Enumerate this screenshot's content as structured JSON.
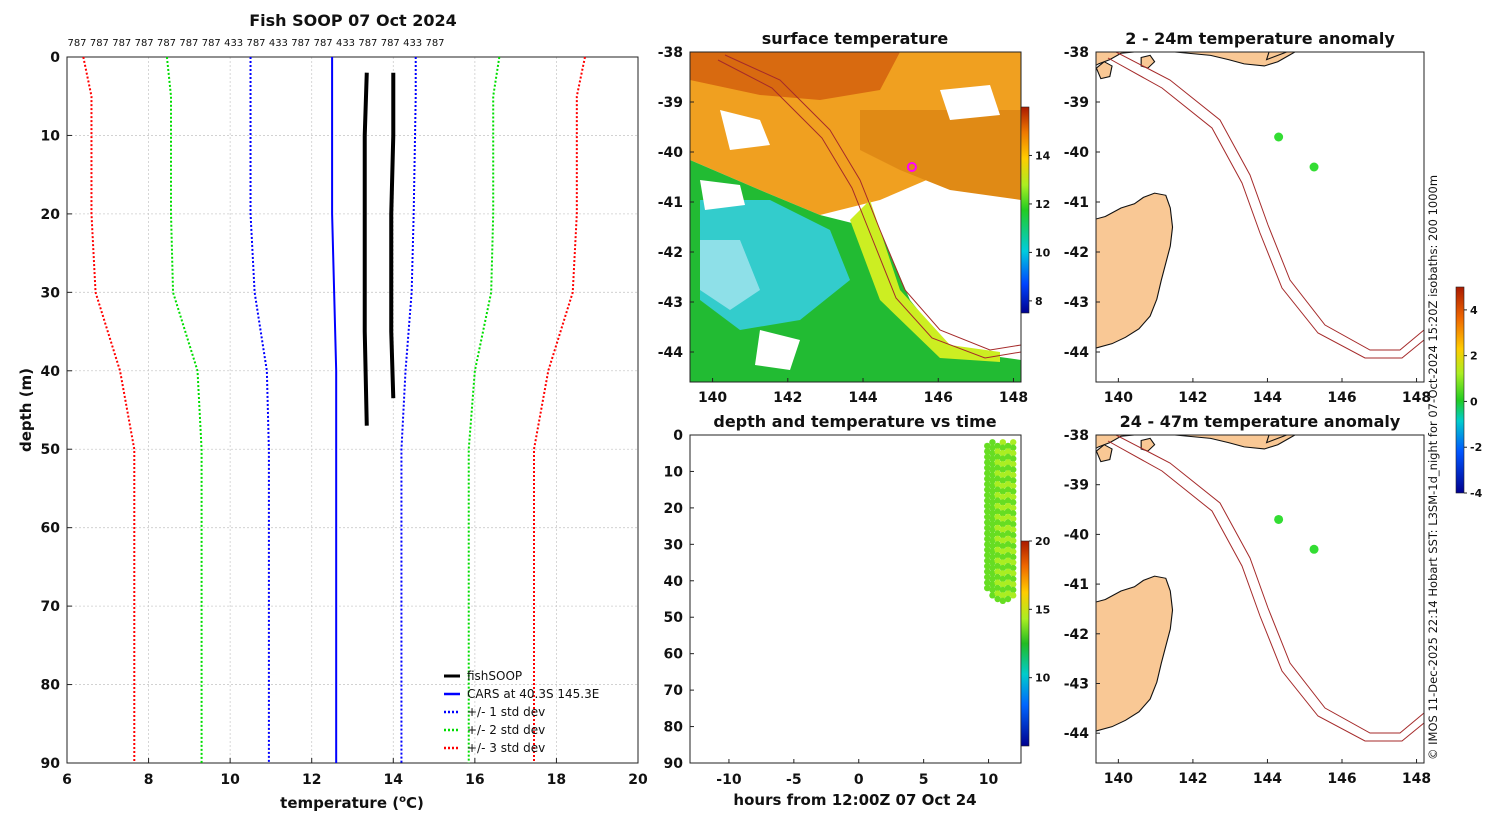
{
  "colors": {
    "fishsoop": "#000000",
    "cars": "#0000ff",
    "std1": "#0000ff",
    "std2": "#00dd00",
    "std3": "#ff0000",
    "land": "#f9c895",
    "isobath": "#a52a2a",
    "marker": "#ff00ff",
    "anomaly_point": "#33dd33"
  },
  "side_caption": "© IMOS 11-Dec-2025 22:14 Hobart SST: L3SM-1d_night for 07-Oct-2024 15:20Z isobaths: 200  1000m",
  "chart_data": [
    {
      "type": "line",
      "title": "Fish SOOP 07 Oct 2024",
      "xlabel": "temperature (°C)",
      "xlabel_main": "temperature (",
      "xlabel_sup": "o",
      "xlabel_tail": "C)",
      "ylabel": "depth (m)",
      "xlim": [
        6,
        20
      ],
      "ylim": [
        90,
        0
      ],
      "xticks": [
        "6",
        "8",
        "10",
        "12",
        "14",
        "16",
        "18",
        "20"
      ],
      "yticks": [
        "0",
        "10",
        "20",
        "30",
        "40",
        "50",
        "60",
        "70",
        "80",
        "90"
      ],
      "grid": true,
      "legend_position": "bottom-right",
      "sample_counts": [
        "787",
        "787",
        "787",
        "787",
        "787",
        "787",
        "787",
        "433",
        "787",
        "433",
        "787",
        "787",
        "433",
        "787",
        "787",
        "433",
        "787"
      ],
      "series": [
        {
          "name": "fishSOOP",
          "style": "solid",
          "width": 4,
          "color_key": "fishsoop",
          "x": [
            13.35,
            13.3,
            13.3,
            13.3,
            13.35
          ],
          "y": [
            2,
            10,
            20,
            35,
            47
          ]
        },
        {
          "name": "fishSOOP",
          "style": "solid",
          "width": 4,
          "color_key": "fishsoop",
          "x": [
            14.0,
            14.0,
            13.95,
            13.95,
            14.0
          ],
          "y": [
            2,
            10,
            20,
            35,
            43.5
          ]
        },
        {
          "name": "CARS at 40.3S 145.3E",
          "style": "solid",
          "width": 2,
          "color_key": "cars",
          "x": [
            12.5,
            12.5,
            12.5,
            12.55,
            12.6,
            12.6,
            12.6,
            12.6
          ],
          "y": [
            0,
            5,
            20,
            30,
            40,
            50,
            60,
            90
          ]
        },
        {
          "name": "+/- 1 std dev",
          "style": "dotted",
          "width": 2,
          "color_key": "std1",
          "x": [
            10.5,
            10.5,
            10.5,
            10.6,
            10.9,
            10.95,
            10.95,
            10.95
          ],
          "y": [
            0,
            5,
            20,
            30,
            40,
            50,
            60,
            90
          ]
        },
        {
          "name": "+/- 1 std dev",
          "style": "dotted",
          "width": 2,
          "color_key": "std1",
          "x": [
            14.55,
            14.55,
            14.5,
            14.45,
            14.3,
            14.2,
            14.2,
            14.2
          ],
          "y": [
            0,
            5,
            20,
            30,
            40,
            50,
            60,
            90
          ]
        },
        {
          "name": "+/- 2 std dev",
          "style": "dotted",
          "width": 2,
          "color_key": "std2",
          "x": [
            8.45,
            8.55,
            8.55,
            8.6,
            9.2,
            9.3,
            9.3,
            9.3
          ],
          "y": [
            0,
            5,
            20,
            30,
            40,
            50,
            60,
            90
          ]
        },
        {
          "name": "+/- 2 std dev",
          "style": "dotted",
          "width": 2,
          "color_key": "std2",
          "x": [
            16.6,
            16.45,
            16.45,
            16.4,
            16.0,
            15.85,
            15.85,
            15.85
          ],
          "y": [
            0,
            5,
            20,
            30,
            40,
            50,
            60,
            90
          ]
        },
        {
          "name": "+/- 3 std dev",
          "style": "dotted",
          "width": 2,
          "color_key": "std3",
          "x": [
            6.4,
            6.6,
            6.6,
            6.7,
            7.3,
            7.65,
            7.65,
            7.65
          ],
          "y": [
            0,
            5,
            20,
            30,
            40,
            50,
            60,
            90
          ]
        },
        {
          "name": "+/- 3 std dev",
          "style": "dotted",
          "width": 2,
          "color_key": "std3",
          "x": [
            18.7,
            18.5,
            18.5,
            18.4,
            17.8,
            17.45,
            17.45,
            17.45
          ],
          "y": [
            0,
            5,
            20,
            30,
            40,
            50,
            60,
            90
          ]
        }
      ],
      "legend": [
        "fishSOOP",
        "CARS at 40.3S 145.3E",
        "+/- 1 std dev",
        "+/- 2 std dev",
        "+/- 3 std dev"
      ]
    },
    {
      "type": "heatmap",
      "title": "surface temperature",
      "xlim": [
        139.4,
        148.2
      ],
      "ylim": [
        -44.6,
        -38
      ],
      "xticks": [
        "140",
        "142",
        "144",
        "146",
        "148"
      ],
      "yticks": [
        "-38",
        "-39",
        "-40",
        "-41",
        "-42",
        "-43",
        "-44"
      ],
      "colorbar_range": [
        7.5,
        16
      ],
      "colorbar_ticks": [
        "8",
        "10",
        "12",
        "14"
      ],
      "marker": {
        "lon": 145.3,
        "lat": -40.3
      }
    },
    {
      "type": "scatter",
      "title": "depth and temperature vs time",
      "xlabel": "hours from 12:00Z 07 Oct 24",
      "xlim": [
        -13,
        12.5
      ],
      "ylim": [
        90,
        0
      ],
      "xticks": [
        "-10",
        "-5",
        "0",
        "5",
        "10"
      ],
      "yticks": [
        "0",
        "10",
        "20",
        "30",
        "40",
        "50",
        "60",
        "70",
        "80",
        "90"
      ],
      "colorbar_range": [
        5,
        20
      ],
      "colorbar_ticks": [
        "10",
        "15",
        "20"
      ],
      "columns": [
        {
          "x": 9.9,
          "ymin": 3,
          "ymax": 43,
          "temp": 13.4
        },
        {
          "x": 10.3,
          "ymin": 2,
          "ymax": 45,
          "temp": 13.3
        },
        {
          "x": 10.7,
          "ymin": 3,
          "ymax": 46,
          "temp": 13.9
        },
        {
          "x": 11.1,
          "ymin": 2,
          "ymax": 46,
          "temp": 13.5
        },
        {
          "x": 11.5,
          "ymin": 3,
          "ymax": 46,
          "temp": 13.6
        },
        {
          "x": 11.9,
          "ymin": 2,
          "ymax": 45,
          "temp": 13.8
        }
      ]
    },
    {
      "type": "scatter",
      "title": "2 - 24m temperature anomaly",
      "xlim": [
        139.4,
        148.2
      ],
      "ylim": [
        -44.6,
        -38
      ],
      "xticks": [
        "140",
        "142",
        "144",
        "146",
        "148"
      ],
      "yticks": [
        "-38",
        "-39",
        "-40",
        "-41",
        "-42",
        "-43",
        "-44"
      ],
      "colorbar_range": [
        -4,
        5
      ],
      "colorbar_ticks": [
        "-4",
        "-2",
        "0",
        "2",
        "4"
      ],
      "points": [
        {
          "lon": 144.3,
          "lat": -39.7,
          "anomaly": 0.5
        },
        {
          "lon": 145.25,
          "lat": -40.3,
          "anomaly": 0.4
        }
      ]
    },
    {
      "type": "scatter",
      "title": "24 - 47m temperature anomaly",
      "xlim": [
        139.4,
        148.2
      ],
      "ylim": [
        -44.6,
        -38
      ],
      "xticks": [
        "140",
        "142",
        "144",
        "146",
        "148"
      ],
      "yticks": [
        "-38",
        "-39",
        "-40",
        "-41",
        "-42",
        "-43",
        "-44"
      ],
      "points": [
        {
          "lon": 144.3,
          "lat": -39.7,
          "anomaly": 0.5
        },
        {
          "lon": 145.25,
          "lat": -40.3,
          "anomaly": 0.4
        }
      ]
    }
  ]
}
